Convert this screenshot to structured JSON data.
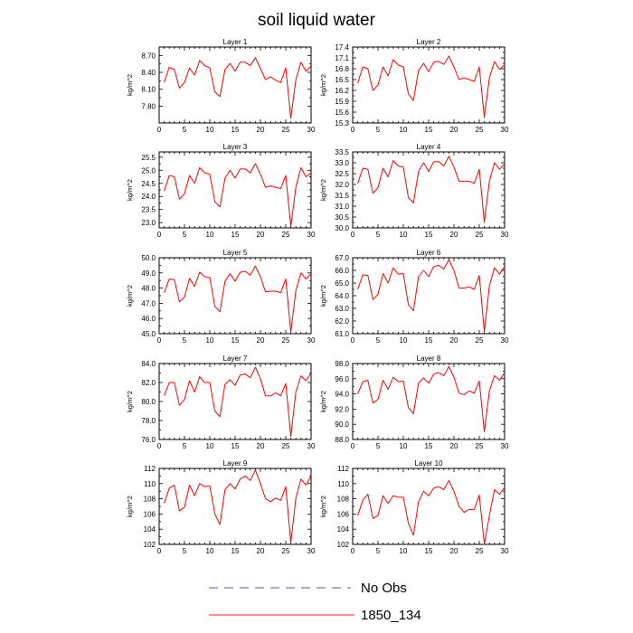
{
  "figure_title": "soil liquid water",
  "legend": [
    {
      "label": "No Obs",
      "style": "dashed",
      "color": "#5a55a8"
    },
    {
      "label": "1850_134",
      "style": "solid",
      "color": "#ff2020"
    }
  ],
  "chart_data": [
    {
      "type": "line",
      "title": "Layer 1",
      "ylabel": "kg/m^2",
      "xlim": [
        0,
        30
      ],
      "ylim": [
        7.5,
        8.85
      ],
      "xticks": [
        0,
        5,
        10,
        15,
        20,
        25,
        30
      ],
      "yticks": [
        7.8,
        8.1,
        8.4,
        8.7
      ],
      "ytick_labels": [
        "7.80",
        "8.10",
        "8.40",
        "8.70"
      ],
      "series": [
        {
          "color": "#ff0000",
          "x": [
            1,
            2,
            3,
            4,
            5,
            6,
            7,
            8,
            9,
            10,
            11,
            12,
            13,
            14,
            15,
            16,
            17,
            18,
            19,
            20,
            21,
            22,
            23,
            24,
            25,
            26,
            27,
            28,
            29,
            30
          ],
          "y": [
            8.22,
            8.49,
            8.45,
            8.12,
            8.22,
            8.48,
            8.35,
            8.61,
            8.52,
            8.48,
            8.05,
            7.97,
            8.45,
            8.56,
            8.42,
            8.58,
            8.58,
            8.52,
            8.66,
            8.47,
            8.27,
            8.32,
            8.26,
            8.22,
            8.48,
            7.58,
            8.27,
            8.58,
            8.42,
            8.51
          ]
        }
      ]
    },
    {
      "type": "line",
      "title": "Layer 2",
      "ylabel": "kg/m^2",
      "xlim": [
        0,
        30
      ],
      "ylim": [
        15.3,
        17.4
      ],
      "xticks": [
        0,
        5,
        10,
        15,
        20,
        25,
        30
      ],
      "yticks": [
        15.3,
        15.6,
        15.9,
        16.2,
        16.5,
        16.8,
        17.1,
        17.4
      ],
      "ytick_labels": [
        "15.3",
        "15.6",
        "15.9",
        "16.2",
        "16.5",
        "16.8",
        "17.1",
        "17.4"
      ],
      "series": [
        {
          "color": "#ff0000",
          "x": [
            1,
            2,
            3,
            4,
            5,
            6,
            7,
            8,
            9,
            10,
            11,
            12,
            13,
            14,
            15,
            16,
            17,
            18,
            19,
            20,
            21,
            22,
            23,
            24,
            25,
            26,
            27,
            28,
            29,
            30
          ],
          "y": [
            16.4,
            16.85,
            16.8,
            16.2,
            16.35,
            16.85,
            16.6,
            17.05,
            16.9,
            16.85,
            16.1,
            15.92,
            16.75,
            16.95,
            16.72,
            16.98,
            17.0,
            16.92,
            17.15,
            16.85,
            16.5,
            16.55,
            16.5,
            16.45,
            16.85,
            15.45,
            16.55,
            17.0,
            16.78,
            16.9
          ]
        }
      ]
    },
    {
      "type": "line",
      "title": "Layer 3",
      "ylabel": "kg/m^2",
      "xlim": [
        0,
        30
      ],
      "ylim": [
        22.8,
        25.7
      ],
      "xticks": [
        0,
        5,
        10,
        15,
        20,
        25,
        30
      ],
      "yticks": [
        23.0,
        23.5,
        24.0,
        24.5,
        25.0,
        25.5
      ],
      "ytick_labels": [
        "23.0",
        "23.5",
        "24.0",
        "24.5",
        "25.0",
        "25.5"
      ],
      "series": [
        {
          "color": "#ff0000",
          "x": [
            1,
            2,
            3,
            4,
            5,
            6,
            7,
            8,
            9,
            10,
            11,
            12,
            13,
            14,
            15,
            16,
            17,
            18,
            19,
            20,
            21,
            22,
            23,
            24,
            25,
            26,
            27,
            28,
            29,
            30
          ],
          "y": [
            24.2,
            24.8,
            24.75,
            23.9,
            24.1,
            24.8,
            24.5,
            25.1,
            24.9,
            24.85,
            23.8,
            23.6,
            24.7,
            25.0,
            24.7,
            25.05,
            25.05,
            24.9,
            25.25,
            24.85,
            24.35,
            24.4,
            24.35,
            24.3,
            24.8,
            22.85,
            24.35,
            25.1,
            24.75,
            24.9
          ]
        }
      ]
    },
    {
      "type": "line",
      "title": "Layer 4",
      "ylabel": "kg/m^2",
      "xlim": [
        0,
        30
      ],
      "ylim": [
        30.0,
        33.5
      ],
      "xticks": [
        0,
        5,
        10,
        15,
        20,
        25,
        30
      ],
      "yticks": [
        30.0,
        30.5,
        31.0,
        31.5,
        32.0,
        32.5,
        33.0,
        33.5
      ],
      "ytick_labels": [
        "30.0",
        "30.5",
        "31.0",
        "31.5",
        "32.0",
        "32.5",
        "33.0",
        "33.5"
      ],
      "series": [
        {
          "color": "#ff0000",
          "x": [
            1,
            2,
            3,
            4,
            5,
            6,
            7,
            8,
            9,
            10,
            11,
            12,
            13,
            14,
            15,
            16,
            17,
            18,
            19,
            20,
            21,
            22,
            23,
            24,
            25,
            26,
            27,
            28,
            29,
            30
          ],
          "y": [
            32.05,
            32.75,
            32.7,
            31.6,
            31.85,
            32.75,
            32.35,
            33.1,
            32.85,
            32.8,
            31.4,
            31.15,
            32.6,
            33.0,
            32.6,
            33.05,
            33.05,
            32.85,
            33.3,
            32.8,
            32.15,
            32.15,
            32.15,
            32.05,
            32.7,
            30.25,
            32.15,
            33.0,
            32.7,
            32.95
          ]
        }
      ]
    },
    {
      "type": "line",
      "title": "Layer 5",
      "ylabel": "kg/m^2",
      "xlim": [
        0,
        30
      ],
      "ylim": [
        45.0,
        50.0
      ],
      "xticks": [
        0,
        5,
        10,
        15,
        20,
        25,
        30
      ],
      "yticks": [
        45.0,
        46.0,
        47.0,
        48.0,
        49.0,
        50.0
      ],
      "ytick_labels": [
        "45.0",
        "46.0",
        "47.0",
        "48.0",
        "49.0",
        "50.0"
      ],
      "series": [
        {
          "color": "#ff0000",
          "x": [
            1,
            2,
            3,
            4,
            5,
            6,
            7,
            8,
            9,
            10,
            11,
            12,
            13,
            14,
            15,
            16,
            17,
            18,
            19,
            20,
            21,
            22,
            23,
            24,
            25,
            26,
            27,
            28,
            29,
            30
          ],
          "y": [
            47.7,
            48.6,
            48.55,
            47.1,
            47.4,
            48.65,
            48.1,
            49.05,
            48.75,
            48.7,
            46.8,
            46.45,
            48.45,
            48.95,
            48.45,
            49.05,
            49.1,
            48.85,
            49.45,
            48.75,
            47.75,
            47.8,
            47.8,
            47.7,
            48.6,
            45.1,
            47.85,
            49.0,
            48.6,
            48.95
          ]
        }
      ]
    },
    {
      "type": "line",
      "title": "Layer 6",
      "ylabel": "kg/m^2",
      "xlim": [
        0,
        30
      ],
      "ylim": [
        61.0,
        67.0
      ],
      "xticks": [
        0,
        5,
        10,
        15,
        20,
        25,
        30
      ],
      "yticks": [
        61.0,
        62.0,
        63.0,
        64.0,
        65.0,
        66.0,
        67.0
      ],
      "ytick_labels": [
        "61.0",
        "62.0",
        "63.0",
        "64.0",
        "65.0",
        "66.0",
        "67.0"
      ],
      "series": [
        {
          "color": "#ff0000",
          "x": [
            1,
            2,
            3,
            4,
            5,
            6,
            7,
            8,
            9,
            10,
            11,
            12,
            13,
            14,
            15,
            16,
            17,
            18,
            19,
            20,
            21,
            22,
            23,
            24,
            25,
            26,
            27,
            28,
            29,
            30
          ],
          "y": [
            64.5,
            65.65,
            65.6,
            63.7,
            64.1,
            65.75,
            65.0,
            66.2,
            65.7,
            65.75,
            63.3,
            62.8,
            65.5,
            66.0,
            65.5,
            66.3,
            66.4,
            66.1,
            66.85,
            66.0,
            64.6,
            64.6,
            64.7,
            64.5,
            65.6,
            61.15,
            64.8,
            66.2,
            65.7,
            66.3
          ]
        }
      ]
    },
    {
      "type": "line",
      "title": "Layer 7",
      "ylabel": "kg/m^2",
      "xlim": [
        0,
        30
      ],
      "ylim": [
        76.0,
        84.0
      ],
      "xticks": [
        0,
        5,
        10,
        15,
        20,
        25,
        30
      ],
      "yticks": [
        76.0,
        78.0,
        80.0,
        82.0,
        84.0
      ],
      "ytick_labels": [
        "76.0",
        "78.0",
        "80.0",
        "82.0",
        "84.0"
      ],
      "series": [
        {
          "color": "#ff0000",
          "x": [
            1,
            2,
            3,
            4,
            5,
            6,
            7,
            8,
            9,
            10,
            11,
            12,
            13,
            14,
            15,
            16,
            17,
            18,
            19,
            20,
            21,
            22,
            23,
            24,
            25,
            26,
            27,
            28,
            29,
            30
          ],
          "y": [
            80.6,
            82.0,
            82.0,
            79.6,
            80.2,
            82.2,
            81.0,
            82.6,
            82.0,
            82.0,
            79.0,
            78.4,
            81.8,
            82.3,
            81.7,
            82.8,
            82.9,
            82.5,
            83.6,
            82.4,
            80.6,
            80.6,
            80.9,
            80.6,
            81.9,
            76.3,
            81.0,
            82.7,
            82.2,
            83.0
          ]
        }
      ]
    },
    {
      "type": "line",
      "title": "Layer 8",
      "ylabel": "kg/m^2",
      "xlim": [
        0,
        30
      ],
      "ylim": [
        88.0,
        98.0
      ],
      "xticks": [
        0,
        5,
        10,
        15,
        20,
        25,
        30
      ],
      "yticks": [
        88.0,
        90.0,
        92.0,
        94.0,
        96.0,
        98.0
      ],
      "ytick_labels": [
        "88.0",
        "90.0",
        "92.0",
        "94.0",
        "96.0",
        "98.0"
      ],
      "series": [
        {
          "color": "#ff0000",
          "x": [
            1,
            2,
            3,
            4,
            5,
            6,
            7,
            8,
            9,
            10,
            11,
            12,
            13,
            14,
            15,
            16,
            17,
            18,
            19,
            20,
            21,
            22,
            23,
            24,
            25,
            26,
            27,
            28,
            29,
            30
          ],
          "y": [
            94.0,
            95.6,
            95.8,
            92.8,
            93.3,
            95.8,
            94.6,
            96.2,
            95.6,
            95.7,
            92.2,
            91.4,
            95.4,
            96.1,
            95.4,
            96.6,
            96.8,
            96.4,
            97.6,
            96.2,
            94.1,
            93.9,
            94.4,
            94.1,
            95.7,
            89.0,
            94.4,
            96.4,
            95.8,
            96.8
          ]
        }
      ]
    },
    {
      "type": "line",
      "title": "Layer 9",
      "ylabel": "kg/m^2",
      "xlim": [
        0,
        30
      ],
      "ylim": [
        102.0,
        112.0
      ],
      "xticks": [
        0,
        5,
        10,
        15,
        20,
        25,
        30
      ],
      "yticks": [
        102,
        104,
        106,
        108,
        110,
        112
      ],
      "ytick_labels": [
        "102",
        "104",
        "106",
        "108",
        "110",
        "112"
      ],
      "series": [
        {
          "color": "#ff0000",
          "x": [
            1,
            2,
            3,
            4,
            5,
            6,
            7,
            8,
            9,
            10,
            11,
            12,
            13,
            14,
            15,
            16,
            17,
            18,
            19,
            20,
            21,
            22,
            23,
            24,
            25,
            26,
            27,
            28,
            29,
            30
          ],
          "y": [
            107.4,
            109.4,
            109.8,
            106.4,
            106.9,
            109.8,
            108.4,
            110.0,
            109.6,
            109.7,
            106.0,
            104.6,
            109.2,
            110.0,
            109.3,
            110.6,
            111.0,
            110.4,
            111.8,
            110.0,
            108.0,
            107.6,
            108.1,
            107.8,
            109.6,
            102.2,
            108.1,
            110.6,
            109.8,
            111.0
          ]
        }
      ]
    },
    {
      "type": "line",
      "title": "Layer 10",
      "ylabel": "kg/m^2",
      "xlim": [
        0,
        30
      ],
      "ylim": [
        102.0,
        112.0
      ],
      "xticks": [
        0,
        5,
        10,
        15,
        20,
        25,
        30
      ],
      "yticks": [
        102,
        104,
        106,
        108,
        110,
        112
      ],
      "ytick_labels": [
        "102",
        "104",
        "106",
        "108",
        "110",
        "112"
      ],
      "series": [
        {
          "color": "#ff0000",
          "x": [
            1,
            2,
            3,
            4,
            5,
            6,
            7,
            8,
            9,
            10,
            11,
            12,
            13,
            14,
            15,
            16,
            17,
            18,
            19,
            20,
            21,
            22,
            23,
            24,
            25,
            26,
            27,
            28,
            29,
            30
          ],
          "y": [
            105.8,
            107.8,
            108.6,
            105.4,
            105.8,
            108.4,
            107.4,
            108.4,
            108.2,
            108.2,
            104.8,
            103.2,
            107.6,
            109.0,
            108.4,
            109.4,
            109.6,
            109.2,
            110.4,
            109.0,
            107.0,
            106.2,
            106.6,
            106.6,
            108.5,
            102.0,
            105.8,
            109.2,
            108.6,
            109.5
          ]
        }
      ]
    }
  ]
}
